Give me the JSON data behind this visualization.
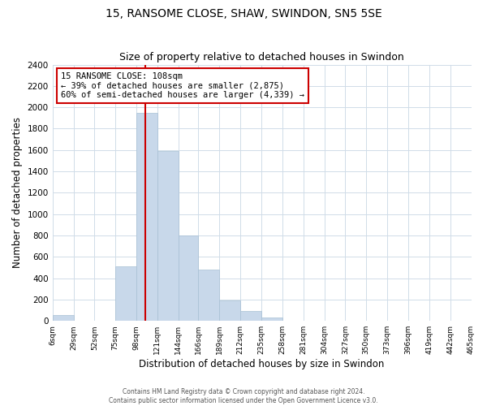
{
  "title": "15, RANSOME CLOSE, SHAW, SWINDON, SN5 5SE",
  "subtitle": "Size of property relative to detached houses in Swindon",
  "xlabel": "Distribution of detached houses by size in Swindon",
  "ylabel": "Number of detached properties",
  "bar_color": "#c8d8ea",
  "bar_edge_color": "#a8c0d4",
  "vline_x": 108,
  "vline_color": "#cc0000",
  "annotation_title": "15 RANSOME CLOSE: 108sqm",
  "annotation_line1": "← 39% of detached houses are smaller (2,875)",
  "annotation_line2": "60% of semi-detached houses are larger (4,339) →",
  "annotation_box_color": "white",
  "annotation_box_edge": "#cc0000",
  "footnote1": "Contains HM Land Registry data © Crown copyright and database right 2024.",
  "footnote2": "Contains public sector information licensed under the Open Government Licence v3.0.",
  "ylim": [
    0,
    2400
  ],
  "yticks": [
    0,
    200,
    400,
    600,
    800,
    1000,
    1200,
    1400,
    1600,
    1800,
    2000,
    2200,
    2400
  ],
  "bin_edges": [
    6,
    29,
    52,
    75,
    98,
    121,
    144,
    166,
    189,
    212,
    235,
    258,
    281,
    304,
    327,
    350,
    373,
    396,
    419,
    442,
    465
  ],
  "bin_heights": [
    55,
    0,
    0,
    510,
    1950,
    1590,
    800,
    480,
    190,
    90,
    30,
    0,
    0,
    0,
    0,
    0,
    0,
    0,
    0,
    0
  ],
  "xtick_labels": [
    "6sqm",
    "29sqm",
    "52sqm",
    "75sqm",
    "98sqm",
    "121sqm",
    "144sqm",
    "166sqm",
    "189sqm",
    "212sqm",
    "235sqm",
    "258sqm",
    "281sqm",
    "304sqm",
    "327sqm",
    "350sqm",
    "373sqm",
    "396sqm",
    "419sqm",
    "442sqm",
    "465sqm"
  ],
  "background_color": "white",
  "plot_background": "white",
  "grid_color": "#d0dce8"
}
